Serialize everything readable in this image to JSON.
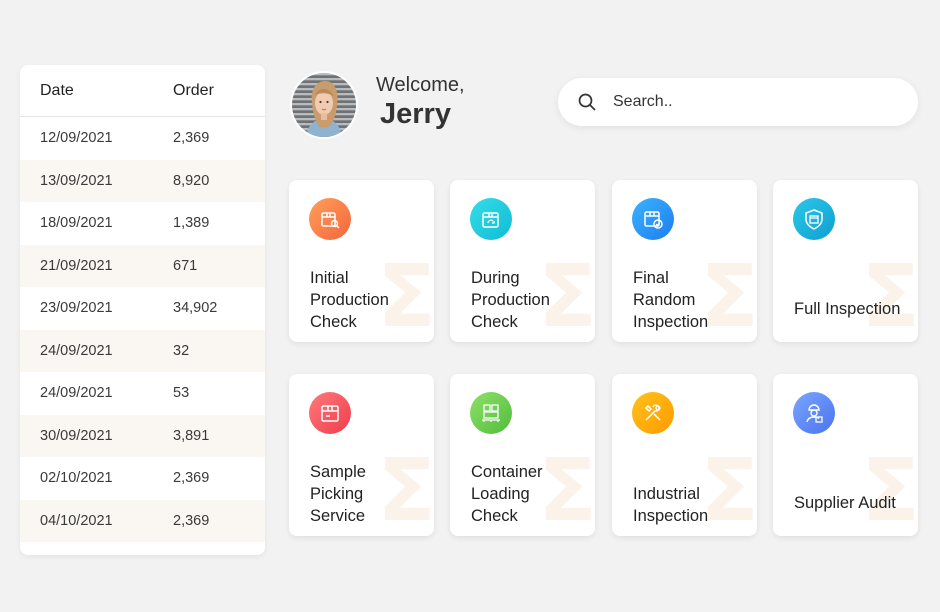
{
  "table": {
    "headers": {
      "date": "Date",
      "order": "Order"
    },
    "rows": [
      {
        "date": "12/09/2021",
        "order": "2,369"
      },
      {
        "date": "13/09/2021",
        "order": "8,920"
      },
      {
        "date": "18/09/2021",
        "order": "1,389"
      },
      {
        "date": "21/09/2021",
        "order": "671"
      },
      {
        "date": "23/09/2021",
        "order": "34,902"
      },
      {
        "date": "24/09/2021",
        "order": "32"
      },
      {
        "date": "24/09/2021",
        "order": "53"
      },
      {
        "date": "30/09/2021",
        "order": "3,891"
      },
      {
        "date": "02/10/2021",
        "order": "2,369"
      },
      {
        "date": "04/10/2021",
        "order": "2,369"
      }
    ]
  },
  "header": {
    "greeting": "Welcome,",
    "username": "Jerry",
    "avatar_icon": "user-avatar"
  },
  "search": {
    "placeholder": "Search..",
    "icon": "search-icon"
  },
  "services": [
    {
      "label": "Initial\nProduction\nCheck",
      "icon": "box-search-icon",
      "color_from": "#ff9f5a",
      "color_to": "#f4663d"
    },
    {
      "label": "During\nProduction\nCheck",
      "icon": "box-refresh-icon",
      "color_from": "#35dde6",
      "color_to": "#0fbcd6"
    },
    {
      "label": "Final\nRandom\nInspection",
      "icon": "box-check-icon",
      "color_from": "#3bb3ff",
      "color_to": "#1d7df0"
    },
    {
      "label": "Full Inspection",
      "icon": "shield-box-icon",
      "color_from": "#2cc8e8",
      "color_to": "#0f9fd0"
    },
    {
      "label": "Sample\nPicking\nService",
      "icon": "box-icon",
      "color_from": "#ff7a7a",
      "color_to": "#f03c4c"
    },
    {
      "label": "Container\nLoading\nCheck",
      "icon": "pallet-icon",
      "color_from": "#8fe06a",
      "color_to": "#4fbd3c"
    },
    {
      "label": "Industrial\nInspection",
      "icon": "tools-icon",
      "color_from": "#ffc21a",
      "color_to": "#ff9a00"
    },
    {
      "label": "Supplier Audit",
      "icon": "worker-icon",
      "color_from": "#7aa5ff",
      "color_to": "#4a73ee"
    }
  ],
  "watermark_glyph": "Σ"
}
